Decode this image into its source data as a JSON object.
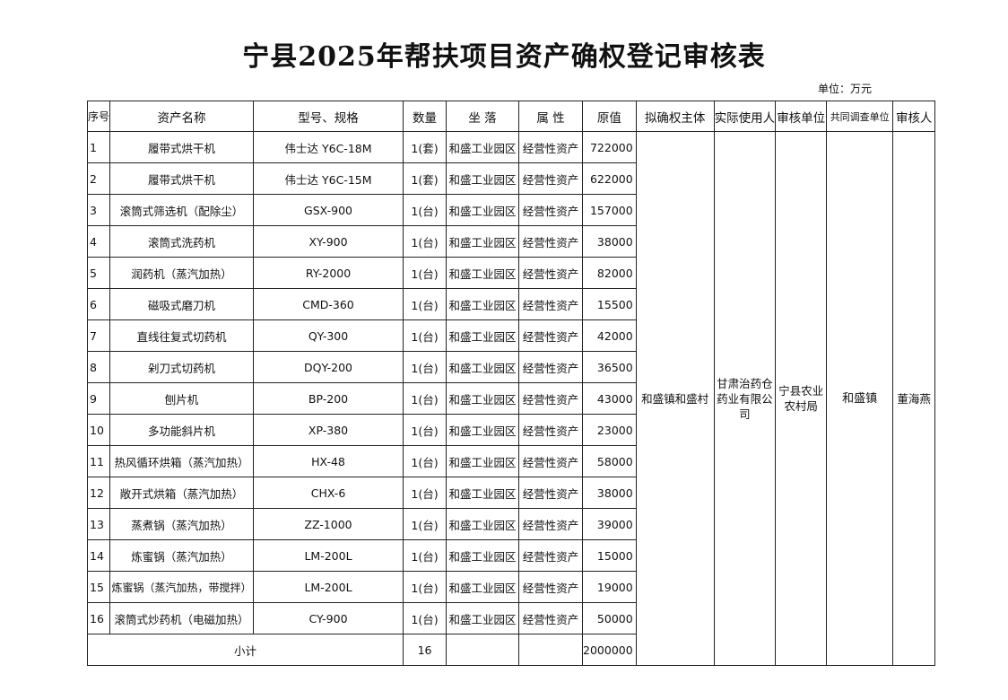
{
  "title": "宁县2025年帮扶项目资产确权登记审核表",
  "unit": "单位：万元",
  "headers": [
    "序号",
    "资产名称",
    "型号、规格",
    "数量",
    "坐 落",
    "属 性",
    "原值",
    "拟确权主体",
    "实际使用人",
    "审核单位",
    "共同调查单位",
    "审核人"
  ],
  "rows": [
    [
      "1",
      "履带式烘干机",
      "伟士达  Y6C-18M",
      "1(套)",
      "和盛工业园区",
      "经营性资产",
      "722000"
    ],
    [
      "2",
      "履带式烘干机",
      "伟士达  Y6C-15M",
      "1(套)",
      "和盛工业园区",
      "经营性资产",
      "622000"
    ],
    [
      "3",
      "滚筒式筛选机（配除尘）",
      "GSX-900",
      "1(台)",
      "和盛工业园区",
      "经营性资产",
      "157000"
    ],
    [
      "4",
      "滚筒式洗药机",
      "XY-900",
      "1(台)",
      "和盛工业园区",
      "经营性资产",
      "38000"
    ],
    [
      "5",
      "润药机（蒸汽加热）",
      "RY-2000",
      "1(台)",
      "和盛工业园区",
      "经营性资产",
      "82000"
    ],
    [
      "6",
      "磁吸式磨刀机",
      "CMD-360",
      "1(台)",
      "和盛工业园区",
      "经营性资产",
      "15500"
    ],
    [
      "7",
      "直线往复式切药机",
      "QY-300",
      "1(台)",
      "和盛工业园区",
      "经营性资产",
      "42000"
    ],
    [
      "8",
      "剁刀式切药机",
      "DQY-200",
      "1(台)",
      "和盛工业园区",
      "经营性资产",
      "36500"
    ],
    [
      "9",
      "刨片机",
      "BP-200",
      "1(台)",
      "和盛工业园区",
      "经营性资产",
      "43000"
    ],
    [
      "10",
      "多功能斜片机",
      "XP-380",
      "1(台)",
      "和盛工业园区",
      "经营性资产",
      "23000"
    ],
    [
      "11",
      "热风循环烘箱（蒸汽加热）",
      "HX-48",
      "1(台)",
      "和盛工业园区",
      "经营性资产",
      "58000"
    ],
    [
      "12",
      "敞开式烘箱（蒸汽加热）",
      "CHX-6",
      "1(台)",
      "和盛工业园区",
      "经营性资产",
      "38000"
    ],
    [
      "13",
      "蒸煮锅（蒸汽加热）",
      "ZZ-1000",
      "1(台)",
      "和盛工业园区",
      "经营性资产",
      "39000"
    ],
    [
      "14",
      "炼蜜锅（蒸汽加热）",
      "LM-200L",
      "1(台)",
      "和盛工业园区",
      "经营性资产",
      "15000"
    ],
    [
      "15",
      "炼蜜锅（蒸汽加热，带搅拌）",
      "LM-200L",
      "1(台)",
      "和盛工业园区",
      "经营性资产",
      "19000"
    ],
    [
      "16",
      "滚筒式炒药机（电磁加热）",
      "CY-900",
      "1(台)",
      "和盛工业园区",
      "经营性资产",
      "50000"
    ]
  ],
  "merged": {
    "owner": "和盛镇和盛村",
    "user": "甘肃治药仓药业有限公司",
    "reviewer_unit": "宁县农业农村局",
    "joint_unit": "和盛镇",
    "reviewer": "董海燕"
  },
  "subtotal": {
    "label": "小计",
    "quantity": "16",
    "value": "2000000"
  }
}
